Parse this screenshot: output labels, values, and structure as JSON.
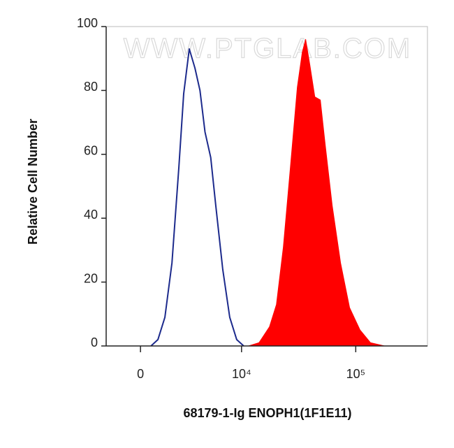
{
  "chart_data": {
    "type": "histogram-overlay",
    "watermark": "WWW.PTGLAB.COM",
    "x_label": "68179-1-Ig ENOPH1(1F1E11)",
    "y_label": "Relative Cell Number",
    "xscale": "asinh",
    "xlim": [
      -2000,
      420000
    ],
    "xticks": [
      0,
      {
        "value": 10000,
        "label": "10⁴"
      },
      {
        "value": 100000,
        "label": "10⁵"
      }
    ],
    "ylim": [
      0,
      100
    ],
    "yticks": [
      0,
      20,
      40,
      60,
      80,
      100
    ],
    "series": [
      {
        "color": "#1c2a8c",
        "fill": false,
        "x": [
          570,
          960,
          1370,
          1810,
          2280,
          2630,
          3070,
          3550,
          4020,
          4530,
          5160,
          5780,
          6730,
          7810,
          9040,
          10450
        ],
        "values": [
          0,
          2,
          9,
          26,
          56,
          79,
          93,
          87,
          80,
          67,
          59,
          44,
          24,
          9,
          2,
          0
        ]
      },
      {
        "color": "#ff0000",
        "fill": true,
        "x": [
          11550,
          14300,
          17690,
          20370,
          23430,
          26980,
          31020,
          34250,
          36680,
          39890,
          44010,
          49180,
          54250,
          62360,
          73760,
          88400,
          108880,
          134480,
          177600
        ],
        "values": [
          0,
          1,
          6,
          13,
          31,
          56,
          81,
          92,
          96,
          88,
          78,
          77,
          63,
          44,
          26,
          12,
          5,
          1,
          0
        ]
      }
    ]
  }
}
